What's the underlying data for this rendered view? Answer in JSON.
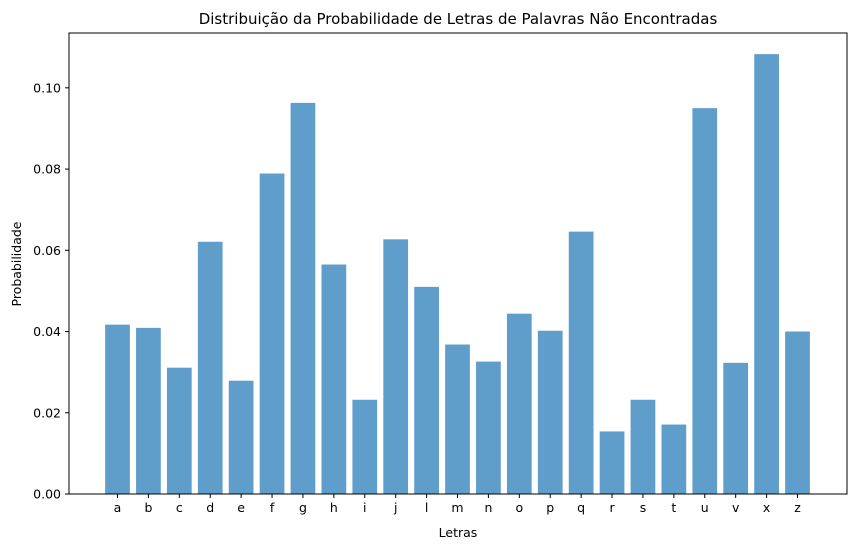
{
  "chart_data": {
    "type": "bar",
    "title": "Distribuição da Probabilidade de Letras de Palavras Não Encontradas",
    "xlabel": "Letras",
    "ylabel": "Probabilidade",
    "categories": [
      "a",
      "b",
      "c",
      "d",
      "e",
      "f",
      "g",
      "h",
      "i",
      "j",
      "l",
      "m",
      "n",
      "o",
      "p",
      "q",
      "r",
      "s",
      "t",
      "u",
      "v",
      "x",
      "z"
    ],
    "values": [
      0.0417,
      0.0409,
      0.0311,
      0.0621,
      0.0279,
      0.0789,
      0.0963,
      0.0565,
      0.0232,
      0.0627,
      0.051,
      0.0368,
      0.0326,
      0.0444,
      0.0402,
      0.0646,
      0.0154,
      0.0232,
      0.0171,
      0.095,
      0.0323,
      0.1083,
      0.04
    ],
    "ylim": [
      0,
      0.1135
    ],
    "yticks": [
      "0.00",
      "0.02",
      "0.04",
      "0.06",
      "0.08",
      "0.10"
    ],
    "bar_color": "#5f9ecb",
    "grid": false,
    "legend": "none"
  }
}
